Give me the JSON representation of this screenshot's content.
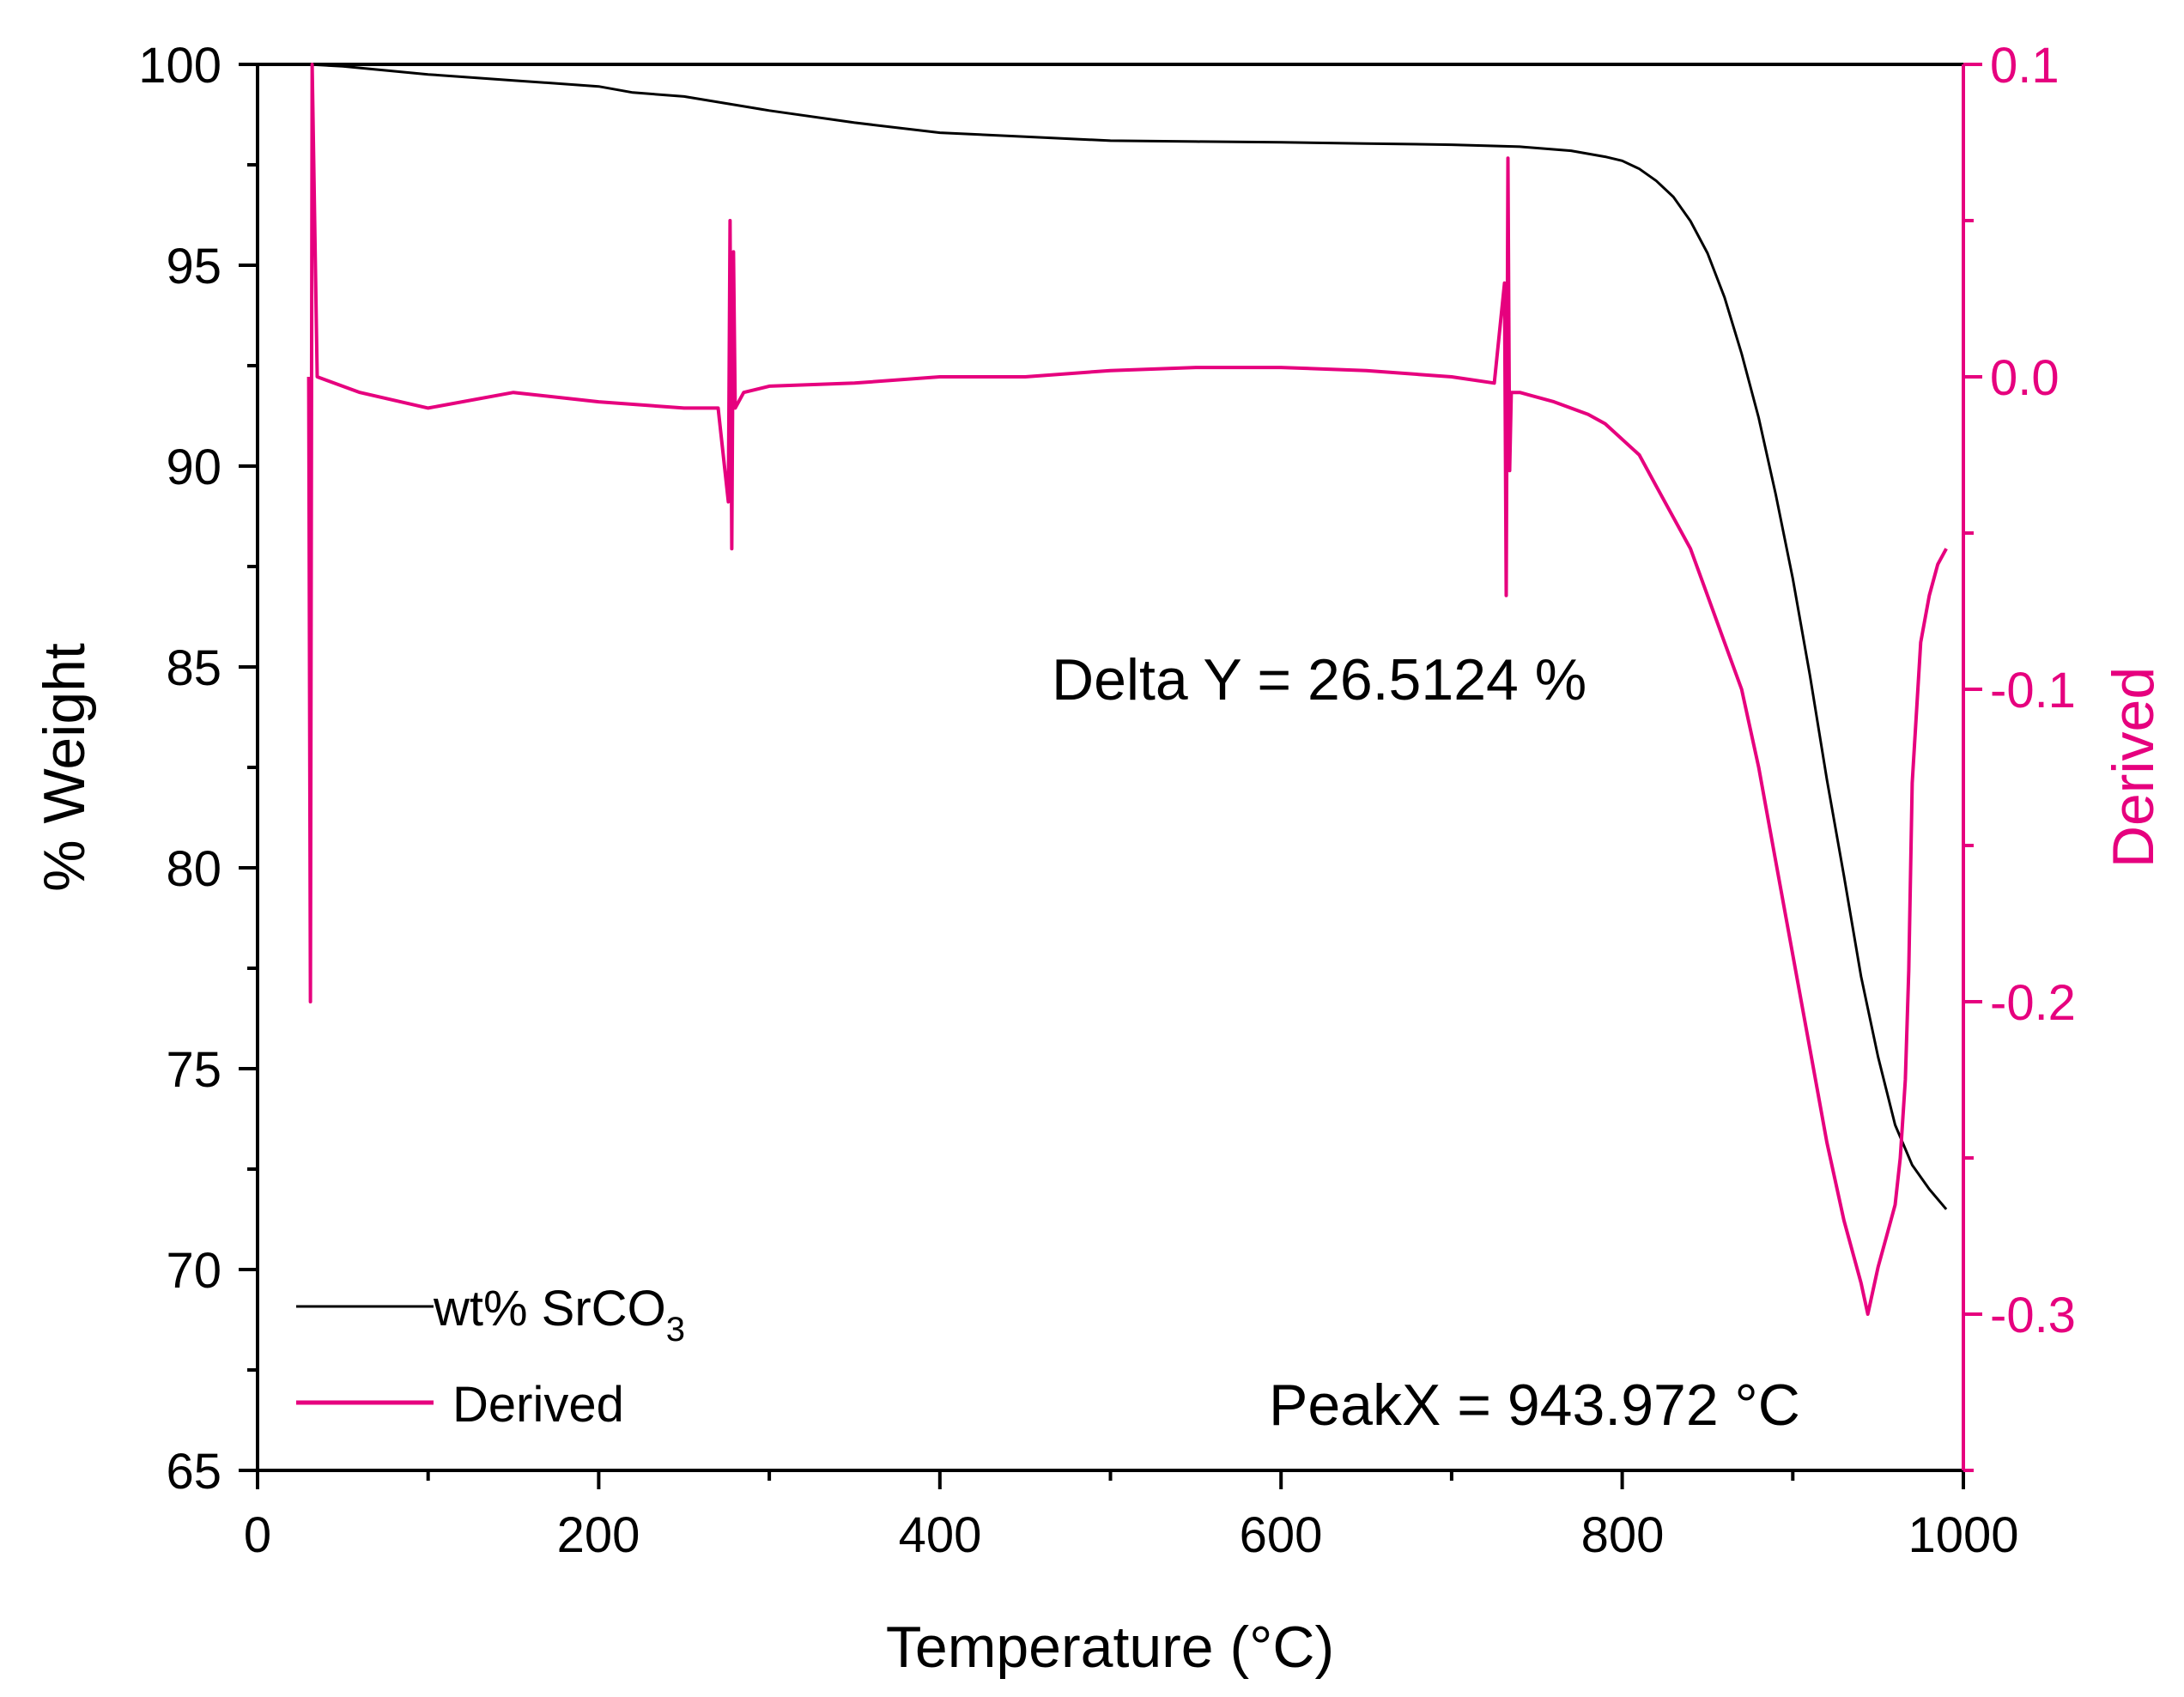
{
  "chart_data": {
    "type": "line",
    "title": "",
    "xlabel": "Temperature (°C)",
    "ylabel": "% Weight",
    "y2label": "Derived",
    "xlim": [
      0,
      1000
    ],
    "ylim": [
      65,
      100
    ],
    "y2lim": [
      -0.35,
      0.1
    ],
    "x_ticks": [
      "0",
      "200",
      "400",
      "600",
      "800",
      "1000"
    ],
    "y_ticks": [
      "65",
      "70",
      "75",
      "80",
      "85",
      "90",
      "95",
      "100"
    ],
    "y2_ticks": [
      "0.1",
      "0.0",
      "-0.1",
      "-0.2",
      "-0.3"
    ],
    "y2_tick_values": [
      0.1,
      0.0,
      -0.1,
      -0.2,
      -0.3
    ],
    "colors": {
      "weight": "#000000",
      "derived": "#e6007e",
      "axis": "#000000"
    },
    "series": [
      {
        "name": "wt% SrCO3",
        "axis": "left",
        "x": [
          30,
          50,
          100,
          150,
          200,
          220,
          250,
          300,
          350,
          400,
          450,
          500,
          550,
          600,
          650,
          700,
          740,
          770,
          790,
          800,
          810,
          820,
          830,
          840,
          850,
          860,
          870,
          880,
          890,
          900,
          910,
          920,
          930,
          940,
          950,
          960,
          970,
          980,
          990
        ],
        "values": [
          100.0,
          99.95,
          99.75,
          99.6,
          99.45,
          99.3,
          99.2,
          98.85,
          98.55,
          98.3,
          98.2,
          98.1,
          98.08,
          98.06,
          98.03,
          98.0,
          97.95,
          97.85,
          97.7,
          97.6,
          97.4,
          97.1,
          96.7,
          96.1,
          95.3,
          94.2,
          92.8,
          91.2,
          89.3,
          87.2,
          84.8,
          82.2,
          79.8,
          77.3,
          75.3,
          73.6,
          72.6,
          72.0,
          71.5
        ]
      },
      {
        "name": "Derived",
        "axis": "right",
        "x": [
          30,
          31,
          32,
          35,
          60,
          100,
          150,
          200,
          250,
          270,
          276,
          277,
          278,
          279,
          280,
          285,
          300,
          350,
          400,
          450,
          500,
          550,
          600,
          650,
          700,
          725,
          731,
          732,
          733,
          734,
          735,
          740,
          760,
          780,
          790,
          800,
          810,
          820,
          830,
          840,
          850,
          860,
          870,
          880,
          890,
          900,
          910,
          920,
          930,
          940,
          944,
          950,
          955,
          960,
          963,
          966,
          968,
          970,
          975,
          980,
          985,
          990
        ],
        "values": [
          0.0,
          -0.2,
          0.1,
          0.0,
          -0.005,
          -0.01,
          -0.005,
          -0.008,
          -0.01,
          -0.01,
          -0.04,
          0.05,
          -0.055,
          0.04,
          -0.01,
          -0.005,
          -0.003,
          -0.002,
          0.0,
          0.0,
          0.002,
          0.003,
          0.003,
          0.002,
          0.0,
          -0.002,
          0.03,
          -0.07,
          0.07,
          -0.03,
          -0.005,
          -0.005,
          -0.008,
          -0.012,
          -0.015,
          -0.02,
          -0.025,
          -0.035,
          -0.045,
          -0.055,
          -0.07,
          -0.085,
          -0.1,
          -0.125,
          -0.155,
          -0.185,
          -0.215,
          -0.245,
          -0.27,
          -0.29,
          -0.3,
          -0.285,
          -0.275,
          -0.265,
          -0.25,
          -0.225,
          -0.19,
          -0.13,
          -0.085,
          -0.07,
          -0.06,
          -0.055
        ]
      }
    ],
    "legend": {
      "position": "bottom-left",
      "entries": [
        {
          "label": "wt% SrCO",
          "subscript": "3"
        },
        {
          "label": "Derived",
          "subscript": ""
        }
      ]
    },
    "annotations": [
      {
        "text": "Delta Y = 26.5124 %"
      },
      {
        "text": "PeakX = 943.972 °C"
      }
    ],
    "grid": false
  }
}
